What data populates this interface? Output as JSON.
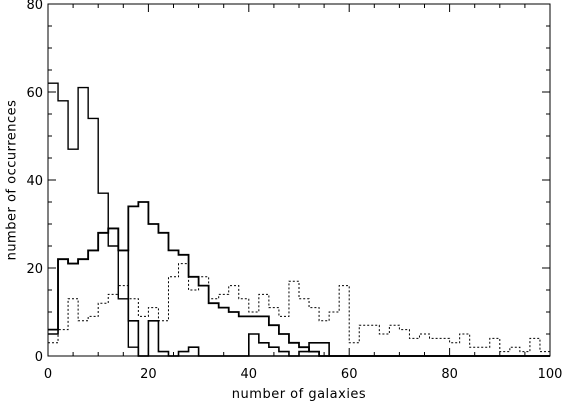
{
  "chart_data": {
    "type": "line",
    "title": "",
    "xlabel": "number of galaxies",
    "ylabel": "number of occurrences",
    "xlim": [
      0,
      100
    ],
    "ylim": [
      0,
      80
    ],
    "xticks": [
      0,
      20,
      40,
      60,
      80,
      100
    ],
    "yticks": [
      0,
      20,
      40,
      60,
      80
    ],
    "grid": false,
    "bin_width": 2,
    "x": [
      0,
      2,
      4,
      6,
      8,
      10,
      12,
      14,
      16,
      18,
      20,
      22,
      24,
      26,
      28,
      30,
      32,
      34,
      36,
      38,
      40,
      42,
      44,
      46,
      48,
      50,
      52,
      54,
      56,
      58,
      60,
      62,
      64,
      66,
      68,
      70,
      72,
      74,
      76,
      78,
      80,
      82,
      84,
      86,
      88,
      90,
      92,
      94,
      96,
      98
    ],
    "series": [
      {
        "style": "solid-thin",
        "values": [
          62,
          58,
          47,
          61,
          54,
          37,
          25,
          13,
          2,
          0,
          0,
          0,
          0,
          0,
          0,
          0,
          0,
          0,
          0,
          0,
          0,
          0,
          0,
          0,
          0,
          0,
          0,
          0,
          0,
          0,
          0,
          0,
          0,
          0,
          0,
          0,
          0,
          0,
          0,
          0,
          0,
          0,
          0,
          0,
          0,
          0,
          0,
          0,
          0,
          0
        ]
      },
      {
        "style": "solid-thick",
        "values": [
          6,
          22,
          21,
          22,
          24,
          28,
          29,
          24,
          34,
          35,
          30,
          28,
          24,
          23,
          18,
          16,
          12,
          11,
          10,
          9,
          9,
          9,
          7,
          5,
          3,
          2,
          1,
          0,
          0,
          0,
          0,
          0,
          0,
          0,
          0,
          0,
          0,
          0,
          0,
          0,
          0,
          0,
          0,
          0,
          0,
          0,
          0,
          0,
          0,
          0
        ]
      },
      {
        "style": "solid",
        "values": [
          5,
          22,
          21,
          22,
          24,
          28,
          29,
          24,
          8,
          0,
          8,
          1,
          0,
          1,
          2,
          0,
          0,
          0,
          0,
          0,
          5,
          3,
          2,
          1,
          0,
          1,
          3,
          3,
          0,
          0,
          0,
          0,
          0,
          0,
          0,
          0,
          0,
          0,
          0,
          0,
          0,
          0,
          0,
          0,
          0,
          0,
          0,
          0,
          0,
          0
        ]
      },
      {
        "style": "dotted",
        "values": [
          3,
          6,
          13,
          8,
          9,
          12,
          14,
          16,
          13,
          9,
          11,
          8,
          18,
          21,
          15,
          18,
          13,
          14,
          16,
          13,
          10,
          14,
          11,
          9,
          17,
          13,
          11,
          8,
          10,
          16,
          3,
          7,
          7,
          5,
          7,
          6,
          4,
          5,
          4,
          4,
          3,
          5,
          2,
          2,
          4,
          1,
          2,
          1,
          4,
          1
        ]
      }
    ]
  }
}
